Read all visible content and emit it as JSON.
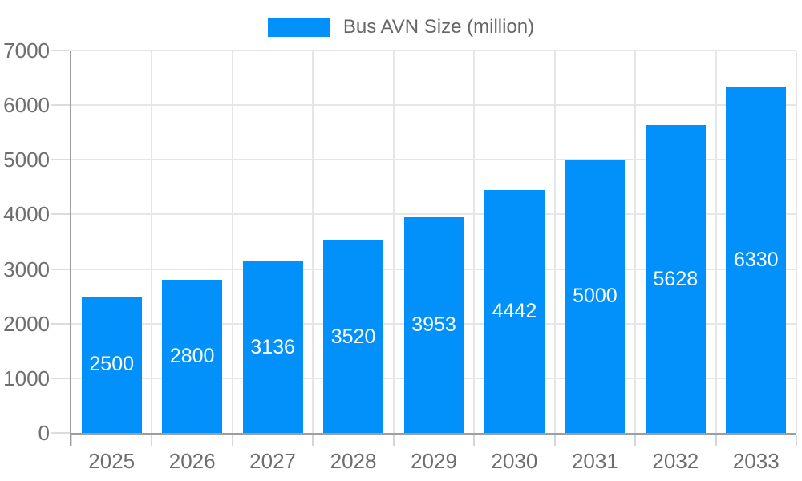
{
  "legend": {
    "label": "Bus AVN Size (million)"
  },
  "chart_data": {
    "type": "bar",
    "title": "Bus AVN Size (million)",
    "categories": [
      "2025",
      "2026",
      "2027",
      "2028",
      "2029",
      "2030",
      "2031",
      "2032",
      "2033"
    ],
    "series": [
      {
        "name": "Bus AVN Size (million)",
        "values": [
          2500,
          2800,
          3136,
          3520,
          3953,
          4442,
          5000,
          5628,
          6330
        ]
      }
    ],
    "xlabel": "",
    "ylabel": "",
    "ylim": [
      0,
      7000
    ],
    "yticks": [
      0,
      1000,
      2000,
      3000,
      4000,
      5000,
      6000,
      7000
    ],
    "grid": true,
    "legend_position": "top-center",
    "value_labels": "centered-inside-white"
  },
  "colors": {
    "bar": "#0291fa",
    "grid": "#e6e6e6",
    "axis": "#9e9e9e",
    "tick": "#d6d6d6",
    "axis_text": "#6e6e6e",
    "legend_text": "#666666",
    "bar_label_text": "#ffffff",
    "background": "#ffffff"
  }
}
